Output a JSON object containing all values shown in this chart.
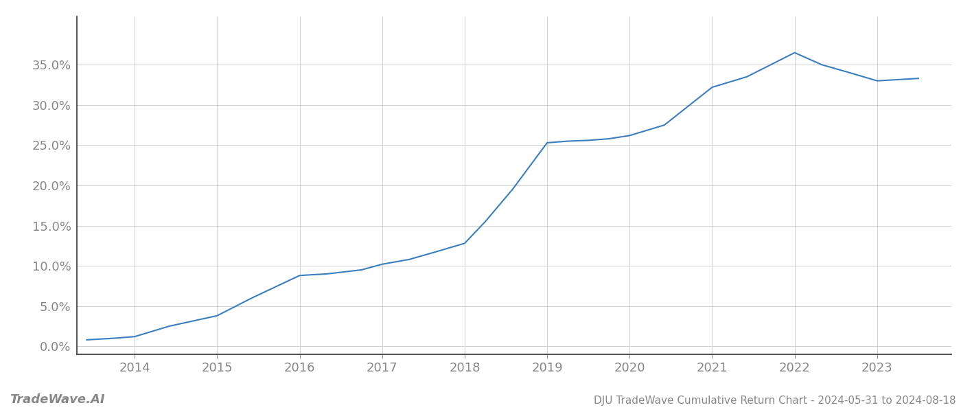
{
  "title": "DJU TradeWave Cumulative Return Chart - 2024-05-31 to 2024-08-18",
  "watermark": "TradeWave.AI",
  "line_color": "#3a7ebf",
  "background_color": "#ffffff",
  "grid_color": "#d0d0d0",
  "x_values": [
    2013.42,
    2013.75,
    2014.0,
    2014.42,
    2015.0,
    2015.42,
    2016.0,
    2016.33,
    2016.75,
    2017.0,
    2017.33,
    2017.67,
    2018.0,
    2018.25,
    2018.58,
    2019.0,
    2019.25,
    2019.5,
    2019.75,
    2020.0,
    2020.42,
    2021.0,
    2021.42,
    2022.0,
    2022.33,
    2022.67,
    2023.0,
    2023.5
  ],
  "y_values": [
    0.008,
    0.01,
    0.012,
    0.025,
    0.038,
    0.06,
    0.088,
    0.09,
    0.095,
    0.102,
    0.108,
    0.118,
    0.128,
    0.155,
    0.195,
    0.253,
    0.255,
    0.256,
    0.258,
    0.262,
    0.275,
    0.322,
    0.335,
    0.365,
    0.35,
    0.34,
    0.33,
    0.333
  ],
  "x_ticks": [
    2014,
    2015,
    2016,
    2017,
    2018,
    2019,
    2020,
    2021,
    2022,
    2023
  ],
  "y_ticks": [
    0.0,
    0.05,
    0.1,
    0.15,
    0.2,
    0.25,
    0.3,
    0.35
  ],
  "ylim": [
    -0.01,
    0.41
  ],
  "xlim": [
    2013.3,
    2023.9
  ],
  "line_width": 1.5,
  "title_fontsize": 11,
  "tick_fontsize": 13,
  "watermark_fontsize": 13,
  "title_color": "#888888",
  "tick_color": "#888888",
  "spine_color": "#333333",
  "axis_color": "#999999"
}
